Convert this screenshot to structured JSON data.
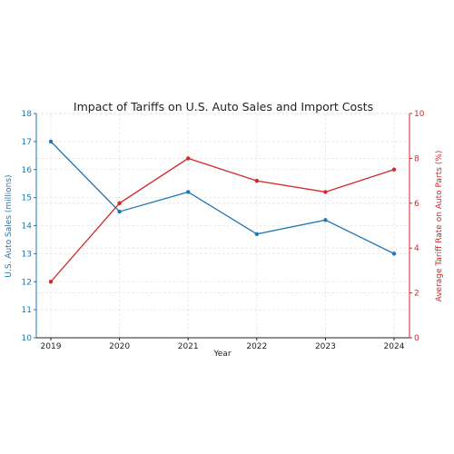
{
  "chart_data": {
    "type": "line",
    "title": "Impact of Tariffs on U.S. Auto Sales and Import Costs",
    "xlabel": "Year",
    "x": [
      "2019",
      "2020",
      "2021",
      "2022",
      "2023",
      "2024"
    ],
    "ylabel_left": "U.S. Auto Sales (millions)",
    "ylabel_right": "Average Tariff Rate on Auto Parts (%)",
    "ylim_left": [
      10,
      18
    ],
    "ylim_right": [
      0,
      10
    ],
    "yticks_left": [
      "10",
      "11",
      "12",
      "13",
      "14",
      "15",
      "16",
      "17",
      "18"
    ],
    "yticks_right": [
      "0",
      "2",
      "4",
      "6",
      "8",
      "10"
    ],
    "grid": true,
    "series": [
      {
        "axis": "left",
        "color": "#1f77b4",
        "values": [
          17.0,
          14.5,
          15.2,
          13.7,
          14.2,
          13.0
        ]
      },
      {
        "axis": "right",
        "color": "#d62728",
        "values": [
          2.5,
          6.0,
          8.0,
          7.0,
          6.5,
          7.5
        ]
      }
    ]
  }
}
